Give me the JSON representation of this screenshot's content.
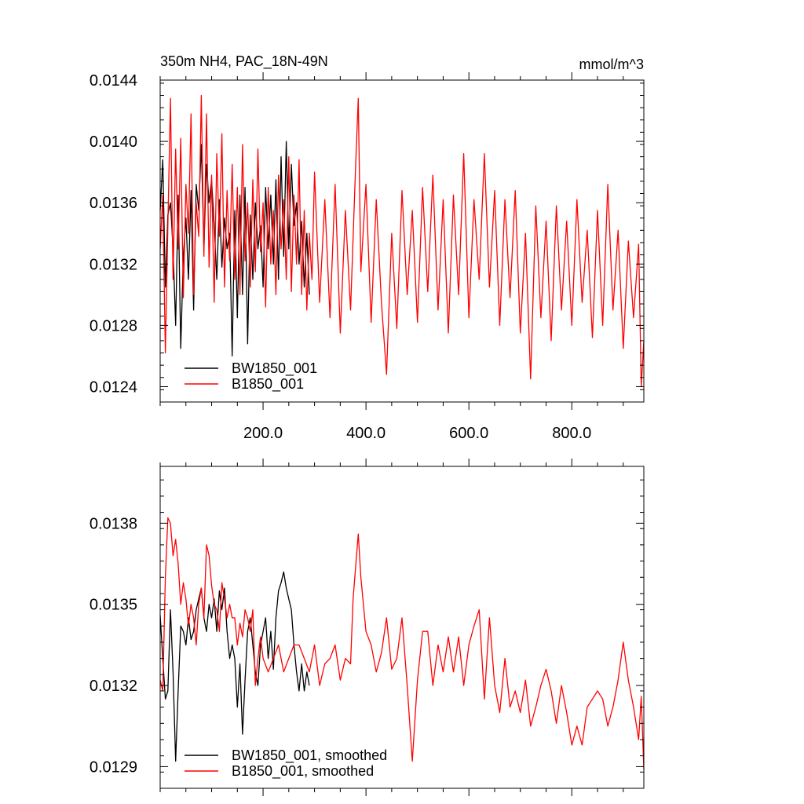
{
  "chart_data": [
    {
      "type": "line",
      "title": "350m NH4, PAC_18N-49N",
      "units": "mmol/m^3",
      "xlim": [
        0,
        940
      ],
      "ylim": [
        0.0123,
        0.0144
      ],
      "yticks": [
        "0.0144",
        "0.0140",
        "0.0136",
        "0.0132",
        "0.0128",
        "0.0124"
      ],
      "xticks": [
        "200.0",
        "400.0",
        "600.0",
        "800.0"
      ],
      "legend_placement": "bottom-left",
      "series": [
        {
          "name": "BW1850_001",
          "color": "#000000",
          "x": [
            0,
            5,
            10,
            15,
            20,
            25,
            30,
            35,
            40,
            45,
            50,
            55,
            60,
            65,
            70,
            75,
            80,
            85,
            90,
            95,
            100,
            105,
            110,
            115,
            120,
            125,
            130,
            135,
            140,
            145,
            150,
            155,
            160,
            165,
            170,
            175,
            180,
            185,
            190,
            195,
            200,
            205,
            210,
            215,
            220,
            225,
            230,
            235,
            240,
            245,
            250,
            255,
            260,
            265,
            270,
            275,
            280,
            285,
            290
          ],
          "values": [
            0.01355,
            0.01388,
            0.01305,
            0.01352,
            0.0136,
            0.0133,
            0.0128,
            0.01365,
            0.01265,
            0.01325,
            0.0135,
            0.0131,
            0.01368,
            0.0129,
            0.01372,
            0.01355,
            0.01398,
            0.0133,
            0.01385,
            0.0136,
            0.01375,
            0.01345,
            0.0131,
            0.01362,
            0.01318,
            0.0135,
            0.0133,
            0.0134,
            0.0126,
            0.01355,
            0.01285,
            0.01365,
            0.013,
            0.0137,
            0.01268,
            0.01352,
            0.0131,
            0.0136,
            0.0133,
            0.01345,
            0.01305,
            0.0137,
            0.0133,
            0.01365,
            0.0132,
            0.01375,
            0.0131,
            0.0139,
            0.01325,
            0.014,
            0.0133,
            0.01385,
            0.01345,
            0.0136,
            0.0132,
            0.01348,
            0.01305,
            0.0134,
            0.013
          ]
        },
        {
          "name": "B1850_001",
          "color": "#ff0000",
          "x": [
            0,
            5,
            10,
            15,
            20,
            25,
            30,
            35,
            40,
            45,
            50,
            55,
            60,
            65,
            70,
            75,
            80,
            85,
            90,
            95,
            100,
            105,
            110,
            115,
            120,
            125,
            130,
            135,
            140,
            145,
            150,
            155,
            160,
            165,
            170,
            175,
            180,
            185,
            190,
            195,
            200,
            205,
            210,
            215,
            220,
            225,
            230,
            235,
            240,
            245,
            250,
            255,
            260,
            265,
            270,
            275,
            280,
            285,
            290,
            295,
            300,
            310,
            320,
            330,
            340,
            350,
            360,
            370,
            380,
            385,
            390,
            400,
            410,
            420,
            430,
            440,
            450,
            460,
            470,
            480,
            490,
            500,
            510,
            520,
            530,
            540,
            550,
            560,
            570,
            580,
            590,
            600,
            610,
            620,
            630,
            640,
            650,
            660,
            670,
            680,
            690,
            700,
            710,
            720,
            730,
            740,
            750,
            760,
            770,
            780,
            790,
            800,
            810,
            820,
            830,
            840,
            850,
            860,
            870,
            880,
            890,
            900,
            910,
            920,
            930,
            935,
            940
          ],
          "values": [
            0.0133,
            0.01365,
            0.01262,
            0.01345,
            0.01428,
            0.0131,
            0.01395,
            0.0133,
            0.01402,
            0.01298,
            0.01372,
            0.0134,
            0.01418,
            0.013,
            0.0136,
            0.01338,
            0.0143,
            0.01325,
            0.01418,
            0.01318,
            0.01378,
            0.01295,
            0.01392,
            0.01338,
            0.01405,
            0.01305,
            0.01368,
            0.01322,
            0.01385,
            0.0131,
            0.0137,
            0.013,
            0.01398,
            0.01322,
            0.0136,
            0.01305,
            0.01375,
            0.01315,
            0.01395,
            0.01328,
            0.0136,
            0.01292,
            0.0137,
            0.0132,
            0.01355,
            0.013,
            0.01378,
            0.0133,
            0.01362,
            0.0131,
            0.0139,
            0.01302,
            0.01365,
            0.0132,
            0.01388,
            0.013,
            0.01355,
            0.0129,
            0.0134,
            0.0131,
            0.0138,
            0.01295,
            0.01362,
            0.01285,
            0.01372,
            0.01275,
            0.01355,
            0.0129,
            0.01385,
            0.01428,
            0.01315,
            0.01372,
            0.01282,
            0.01362,
            0.01295,
            0.01248,
            0.0134,
            0.01278,
            0.01368,
            0.013,
            0.01355,
            0.01282,
            0.0137,
            0.01302,
            0.01378,
            0.0129,
            0.01362,
            0.01275,
            0.01365,
            0.013,
            0.01392,
            0.01285,
            0.01362,
            0.0131,
            0.01392,
            0.01305,
            0.01368,
            0.0128,
            0.01362,
            0.01298,
            0.01368,
            0.01275,
            0.0134,
            0.01245,
            0.01358,
            0.01285,
            0.01348,
            0.0127,
            0.01358,
            0.0129,
            0.01348,
            0.0128,
            0.01362,
            0.01295,
            0.01342,
            0.01272,
            0.01355,
            0.0128,
            0.01372,
            0.0129,
            0.01342,
            0.01265,
            0.01335,
            0.01285,
            0.01333,
            0.0124,
            0.0127
          ]
        }
      ]
    },
    {
      "type": "line",
      "xlim": [
        0,
        940
      ],
      "ylim": [
        0.01282,
        0.01401
      ],
      "yticks": [
        "0.0138",
        "0.0135",
        "0.0132",
        "0.0129"
      ],
      "legend_placement": "bottom-left",
      "series": [
        {
          "name": "BW1850_001, smoothed",
          "color": "#000000",
          "x": [
            0,
            5,
            10,
            15,
            20,
            25,
            30,
            35,
            40,
            45,
            50,
            55,
            60,
            65,
            70,
            75,
            80,
            85,
            90,
            95,
            100,
            105,
            110,
            115,
            120,
            125,
            130,
            135,
            140,
            145,
            150,
            155,
            160,
            165,
            170,
            175,
            180,
            185,
            190,
            195,
            200,
            205,
            210,
            215,
            220,
            225,
            230,
            235,
            240,
            245,
            250,
            255,
            260,
            265,
            270,
            275,
            280,
            285,
            290
          ],
          "values": [
            0.01346,
            0.0133,
            0.01315,
            0.01318,
            0.01348,
            0.01325,
            0.01292,
            0.01318,
            0.01342,
            0.0134,
            0.01335,
            0.01345,
            0.01337,
            0.0134,
            0.01348,
            0.01352,
            0.01356,
            0.01345,
            0.0134,
            0.0135,
            0.01345,
            0.01352,
            0.0134,
            0.01355,
            0.01348,
            0.01356,
            0.0134,
            0.0133,
            0.01335,
            0.0133,
            0.01312,
            0.01328,
            0.01302,
            0.01322,
            0.0134,
            0.01345,
            0.01335,
            0.01325,
            0.0132,
            0.01335,
            0.0134,
            0.01345,
            0.0133,
            0.0134,
            0.01326,
            0.01345,
            0.01355,
            0.01358,
            0.01362,
            0.01356,
            0.01352,
            0.01348,
            0.01335,
            0.01325,
            0.01318,
            0.01328,
            0.01318,
            0.01325,
            0.0132
          ]
        },
        {
          "name": "B1850_001, smoothed",
          "color": "#ff0000",
          "x": [
            0,
            5,
            10,
            15,
            20,
            25,
            30,
            35,
            40,
            45,
            50,
            55,
            60,
            65,
            70,
            75,
            80,
            85,
            90,
            95,
            100,
            105,
            110,
            115,
            120,
            125,
            130,
            135,
            140,
            145,
            150,
            155,
            160,
            165,
            170,
            175,
            180,
            185,
            190,
            195,
            200,
            210,
            220,
            230,
            240,
            250,
            260,
            270,
            280,
            290,
            300,
            310,
            320,
            330,
            340,
            350,
            360,
            370,
            375,
            380,
            385,
            390,
            400,
            410,
            420,
            430,
            440,
            450,
            460,
            470,
            480,
            490,
            500,
            510,
            520,
            530,
            540,
            550,
            560,
            570,
            580,
            590,
            600,
            610,
            620,
            630,
            640,
            650,
            660,
            670,
            680,
            690,
            700,
            710,
            720,
            730,
            740,
            750,
            760,
            770,
            780,
            790,
            800,
            810,
            820,
            830,
            840,
            850,
            860,
            870,
            880,
            890,
            900,
            910,
            920,
            930,
            935,
            940
          ],
          "values": [
            0.01322,
            0.01318,
            0.0136,
            0.01382,
            0.0138,
            0.01368,
            0.01374,
            0.01365,
            0.0135,
            0.01358,
            0.01352,
            0.01342,
            0.0135,
            0.01345,
            0.01335,
            0.0135,
            0.01356,
            0.01345,
            0.01372,
            0.01368,
            0.01357,
            0.0135,
            0.01348,
            0.0134,
            0.01358,
            0.01352,
            0.01345,
            0.0135,
            0.01345,
            0.01345,
            0.01335,
            0.01343,
            0.01338,
            0.01348,
            0.01345,
            0.0134,
            0.01348,
            0.0132,
            0.0133,
            0.01338,
            0.0133,
            0.01325,
            0.0133,
            0.01335,
            0.01325,
            0.0133,
            0.01335,
            0.01335,
            0.0133,
            0.01325,
            0.01335,
            0.0132,
            0.01328,
            0.0133,
            0.01335,
            0.01322,
            0.0133,
            0.01328,
            0.01352,
            0.01364,
            0.01376,
            0.0136,
            0.0134,
            0.01335,
            0.01325,
            0.01332,
            0.01345,
            0.01326,
            0.0133,
            0.01345,
            0.0132,
            0.01292,
            0.01322,
            0.0134,
            0.0134,
            0.0132,
            0.01335,
            0.01325,
            0.01338,
            0.01325,
            0.01338,
            0.0132,
            0.01335,
            0.01342,
            0.01348,
            0.01315,
            0.01345,
            0.0132,
            0.0131,
            0.0133,
            0.01312,
            0.01318,
            0.0131,
            0.01322,
            0.01305,
            0.01312,
            0.0132,
            0.01326,
            0.01318,
            0.01306,
            0.0132,
            0.0131,
            0.01298,
            0.01305,
            0.01298,
            0.01312,
            0.01315,
            0.01318,
            0.01315,
            0.01305,
            0.01312,
            0.01322,
            0.01336,
            0.01322,
            0.01312,
            0.013,
            0.01316,
            0.01289
          ]
        }
      ]
    }
  ]
}
